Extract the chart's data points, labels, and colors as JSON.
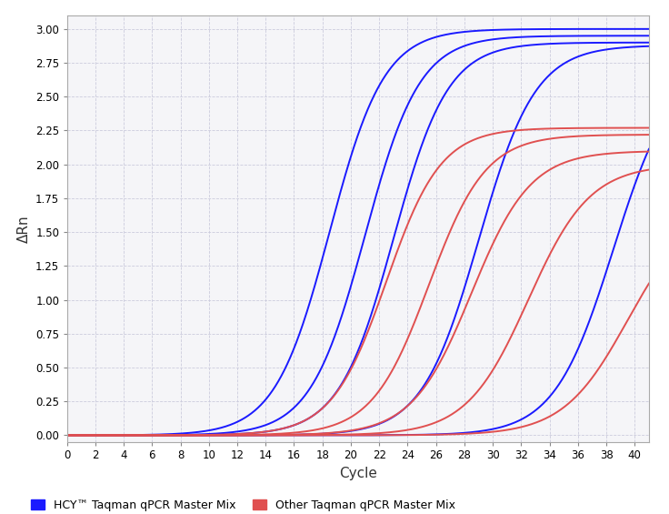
{
  "blue_curves": [
    {
      "ct": 18.5,
      "plateau": 3.0,
      "k": 0.52
    },
    {
      "ct": 21.0,
      "plateau": 2.95,
      "k": 0.52
    },
    {
      "ct": 23.0,
      "plateau": 2.9,
      "k": 0.52
    },
    {
      "ct": 29.0,
      "plateau": 2.88,
      "k": 0.5
    },
    {
      "ct": 38.5,
      "plateau": 2.75,
      "k": 0.48
    }
  ],
  "red_curves": [
    {
      "ct": 22.5,
      "plateau": 2.27,
      "k": 0.52
    },
    {
      "ct": 25.5,
      "plateau": 2.22,
      "k": 0.5
    },
    {
      "ct": 28.5,
      "plateau": 2.1,
      "k": 0.48
    },
    {
      "ct": 32.5,
      "plateau": 2.0,
      "k": 0.46
    },
    {
      "ct": 39.5,
      "plateau": 1.7,
      "k": 0.44
    }
  ],
  "blue_color": "#1a1aff",
  "red_color": "#e05050",
  "background_color": "#ffffff",
  "plot_bg_color": "#f5f5f8",
  "grid_color": "#ccccdd",
  "xlabel": "Cycle",
  "ylabel": "ΔRn",
  "xlim": [
    0,
    41
  ],
  "ylim": [
    -0.05,
    3.1
  ],
  "xticks": [
    0,
    2,
    4,
    6,
    8,
    10,
    12,
    14,
    16,
    18,
    20,
    22,
    24,
    26,
    28,
    30,
    32,
    34,
    36,
    38,
    40
  ],
  "yticks": [
    0.0,
    0.25,
    0.5,
    0.75,
    1.0,
    1.25,
    1.5,
    1.75,
    2.0,
    2.25,
    2.5,
    2.75,
    3.0
  ],
  "legend_blue": "HCY™ Taqman qPCR Master Mix",
  "legend_red": "Other Taqman qPCR Master Mix",
  "figsize": [
    7.36,
    5.65
  ],
  "dpi": 100
}
